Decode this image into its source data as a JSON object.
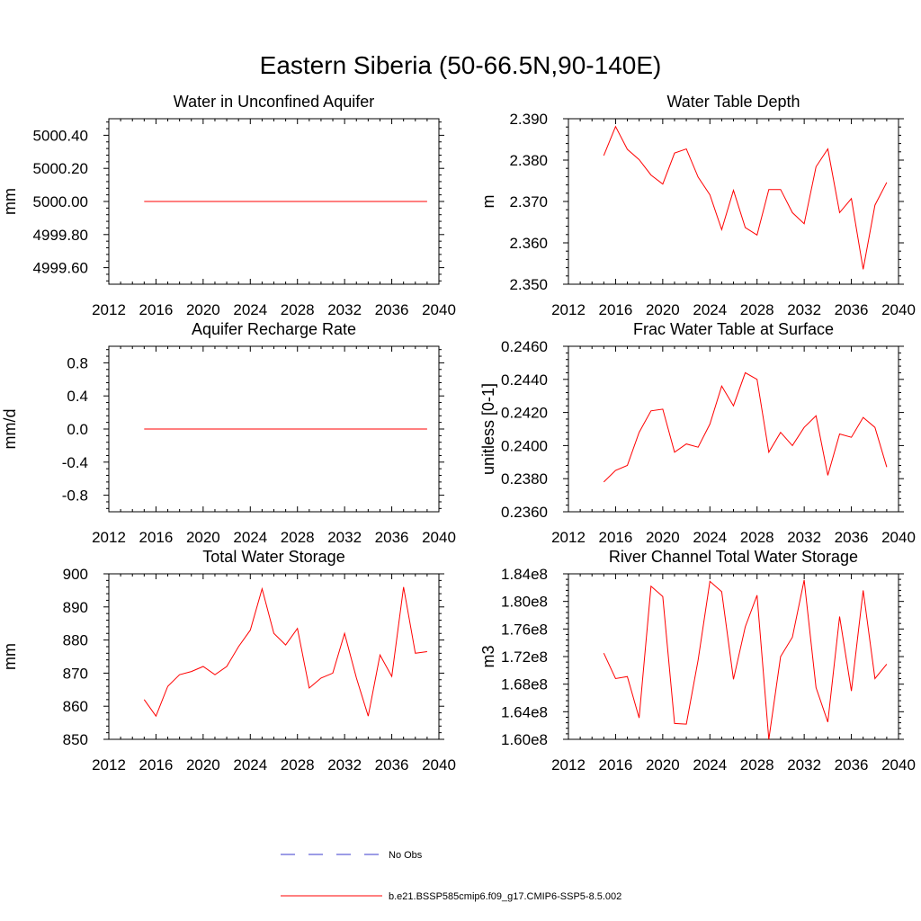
{
  "figure_title": "Eastern Siberia (50-66.5N,90-140E)",
  "legend": {
    "entries": [
      {
        "label": "No Obs",
        "color": "#3a3acc",
        "dash": "dashed"
      },
      {
        "label": "b.e21.BSSP585cmip6.f09_g17.CMIP6-SSP5-8.5.002",
        "color": "#ff0000",
        "dash": "solid"
      }
    ]
  },
  "chart_data": [
    {
      "type": "line",
      "title": "Water in Unconfined Aquifer",
      "ylabel": "mm",
      "xlim": [
        2012,
        2040
      ],
      "ylim": [
        4999.5,
        5000.5
      ],
      "xticks": [
        2012,
        2016,
        2020,
        2024,
        2028,
        2032,
        2036,
        2040
      ],
      "xtick_labels": [
        "2012",
        "2016",
        "2020",
        "2024",
        "2028",
        "2032",
        "2036",
        "2040"
      ],
      "yticks": [
        4999.6,
        4999.8,
        5000.0,
        5000.2,
        5000.4
      ],
      "ytick_labels": [
        "4999.60",
        "4999.80",
        "5000.00",
        "5000.20",
        "5000.40"
      ],
      "color": "#ff0000",
      "x": [
        2015,
        2016,
        2017,
        2018,
        2019,
        2020,
        2021,
        2022,
        2023,
        2024,
        2025,
        2026,
        2027,
        2028,
        2029,
        2030,
        2031,
        2032,
        2033,
        2034,
        2035,
        2036,
        2037,
        2038,
        2039
      ],
      "y": [
        5000.0,
        5000.0,
        5000.0,
        5000.0,
        5000.0,
        5000.0,
        5000.0,
        5000.0,
        5000.0,
        5000.0,
        5000.0,
        5000.0,
        5000.0,
        5000.0,
        5000.0,
        5000.0,
        5000.0,
        5000.0,
        5000.0,
        5000.0,
        5000.0,
        5000.0,
        5000.0,
        5000.0,
        5000.0
      ]
    },
    {
      "type": "line",
      "title": "Water Table Depth",
      "ylabel": "m",
      "xlim": [
        2012,
        2040
      ],
      "ylim": [
        2.35,
        2.39
      ],
      "xticks": [
        2012,
        2016,
        2020,
        2024,
        2028,
        2032,
        2036,
        2040
      ],
      "xtick_labels": [
        "2012",
        "2016",
        "2020",
        "2024",
        "2028",
        "2032",
        "2036",
        "2040"
      ],
      "yticks": [
        2.35,
        2.36,
        2.37,
        2.38,
        2.39
      ],
      "ytick_labels": [
        "2.350",
        "2.360",
        "2.370",
        "2.380",
        "2.390"
      ],
      "color": "#ff0000",
      "x": [
        2015,
        2016,
        2017,
        2018,
        2019,
        2020,
        2021,
        2022,
        2023,
        2024,
        2025,
        2026,
        2027,
        2028,
        2029,
        2030,
        2031,
        2032,
        2033,
        2034,
        2035,
        2036,
        2037,
        2038,
        2039
      ],
      "y": [
        2.3811,
        2.3881,
        2.3826,
        2.3801,
        2.3764,
        2.3742,
        2.3817,
        2.3827,
        2.3759,
        2.3716,
        2.3632,
        2.3727,
        2.3637,
        2.3619,
        2.3729,
        2.3729,
        2.3673,
        2.3646,
        2.3784,
        2.3827,
        2.3673,
        2.3707,
        2.3536,
        2.3691,
        2.3746
      ]
    },
    {
      "type": "line",
      "title": "Aquifer Recharge Rate",
      "ylabel": "mm/d",
      "xlim": [
        2012,
        2040
      ],
      "ylim": [
        -1.0,
        1.0
      ],
      "xticks": [
        2012,
        2016,
        2020,
        2024,
        2028,
        2032,
        2036,
        2040
      ],
      "xtick_labels": [
        "2012",
        "2016",
        "2020",
        "2024",
        "2028",
        "2032",
        "2036",
        "2040"
      ],
      "yticks": [
        -0.8,
        -0.4,
        0.0,
        0.4,
        0.8
      ],
      "ytick_labels": [
        "-0.8",
        "-0.4",
        "0.0",
        "0.4",
        "0.8"
      ],
      "color": "#ff0000",
      "x": [
        2015,
        2016,
        2017,
        2018,
        2019,
        2020,
        2021,
        2022,
        2023,
        2024,
        2025,
        2026,
        2027,
        2028,
        2029,
        2030,
        2031,
        2032,
        2033,
        2034,
        2035,
        2036,
        2037,
        2038,
        2039
      ],
      "y": [
        0.0,
        0.0,
        0.0,
        0.0,
        0.0,
        0.0,
        0.0,
        0.0,
        0.0,
        0.0,
        0.0,
        0.0,
        0.0,
        0.0,
        0.0,
        0.0,
        0.0,
        0.0,
        0.0,
        0.0,
        0.0,
        0.0,
        0.0,
        0.0,
        0.0
      ]
    },
    {
      "type": "line",
      "title": "Frac Water Table at Surface",
      "ylabel": "unitless [0-1]",
      "xlim": [
        2012,
        2040
      ],
      "ylim": [
        0.236,
        0.246
      ],
      "xticks": [
        2012,
        2016,
        2020,
        2024,
        2028,
        2032,
        2036,
        2040
      ],
      "xtick_labels": [
        "2012",
        "2016",
        "2020",
        "2024",
        "2028",
        "2032",
        "2036",
        "2040"
      ],
      "yticks": [
        0.236,
        0.238,
        0.24,
        0.242,
        0.244,
        0.246
      ],
      "ytick_labels": [
        "0.2360",
        "0.2380",
        "0.2400",
        "0.2420",
        "0.2440",
        "0.2460"
      ],
      "color": "#ff0000",
      "x": [
        2015,
        2016,
        2017,
        2018,
        2019,
        2020,
        2021,
        2022,
        2023,
        2024,
        2025,
        2026,
        2027,
        2028,
        2029,
        2030,
        2031,
        2032,
        2033,
        2034,
        2035,
        2036,
        2037,
        2038,
        2039
      ],
      "y": [
        0.2378,
        0.2385,
        0.2388,
        0.2408,
        0.2421,
        0.2422,
        0.2396,
        0.2401,
        0.2399,
        0.2413,
        0.2436,
        0.2424,
        0.2444,
        0.244,
        0.2396,
        0.2408,
        0.24,
        0.2411,
        0.2418,
        0.2382,
        0.2407,
        0.2405,
        0.2417,
        0.2411,
        0.2387
      ]
    },
    {
      "type": "line",
      "title": "Total Water Storage",
      "ylabel": "mm",
      "xlim": [
        2012,
        2040
      ],
      "ylim": [
        850,
        900
      ],
      "xticks": [
        2012,
        2016,
        2020,
        2024,
        2028,
        2032,
        2036,
        2040
      ],
      "xtick_labels": [
        "2012",
        "2016",
        "2020",
        "2024",
        "2028",
        "2032",
        "2036",
        "2040"
      ],
      "yticks": [
        850,
        860,
        870,
        880,
        890,
        900
      ],
      "ytick_labels": [
        "850",
        "860",
        "870",
        "880",
        "890",
        "900"
      ],
      "color": "#ff0000",
      "x": [
        2015,
        2016,
        2017,
        2018,
        2019,
        2020,
        2021,
        2022,
        2023,
        2024,
        2025,
        2026,
        2027,
        2028,
        2029,
        2030,
        2031,
        2032,
        2033,
        2034,
        2035,
        2036,
        2037,
        2038,
        2039
      ],
      "y": [
        862.0,
        857.0,
        866.0,
        869.5,
        870.5,
        872.0,
        869.5,
        872.0,
        878.0,
        883.0,
        895.5,
        882.0,
        878.5,
        883.5,
        865.5,
        868.5,
        870.0,
        882.0,
        868.5,
        857.0,
        875.5,
        869.0,
        896.0,
        876.0,
        876.5
      ]
    },
    {
      "type": "line",
      "title": "River Channel Total Water Storage",
      "ylabel": "m3",
      "xlim": [
        2012,
        2040
      ],
      "ylim": [
        160000000,
        184000000
      ],
      "xticks": [
        2012,
        2016,
        2020,
        2024,
        2028,
        2032,
        2036,
        2040
      ],
      "xtick_labels": [
        "2012",
        "2016",
        "2020",
        "2024",
        "2028",
        "2032",
        "2036",
        "2040"
      ],
      "yticks": [
        160000000,
        164000000,
        168000000,
        172000000,
        176000000,
        180000000,
        184000000
      ],
      "ytick_labels": [
        "1.60e8",
        "1.64e8",
        "1.68e8",
        "1.72e8",
        "1.76e8",
        "1.80e8",
        "1.84e8"
      ],
      "color": "#ff0000",
      "x": [
        2015,
        2016,
        2017,
        2018,
        2019,
        2020,
        2021,
        2022,
        2023,
        2024,
        2025,
        2026,
        2027,
        2028,
        2029,
        2030,
        2031,
        2032,
        2033,
        2034,
        2035,
        2036,
        2037,
        2038,
        2039
      ],
      "y": [
        172500000,
        168800000,
        169100000,
        163100000,
        182200000,
        180700000,
        162300000,
        162200000,
        171500000,
        182900000,
        181400000,
        168700000,
        176300000,
        180900000,
        160000000,
        172000000,
        174800000,
        183100000,
        167500000,
        162500000,
        177800000,
        167000000,
        181600000,
        168800000,
        170900000
      ]
    }
  ]
}
